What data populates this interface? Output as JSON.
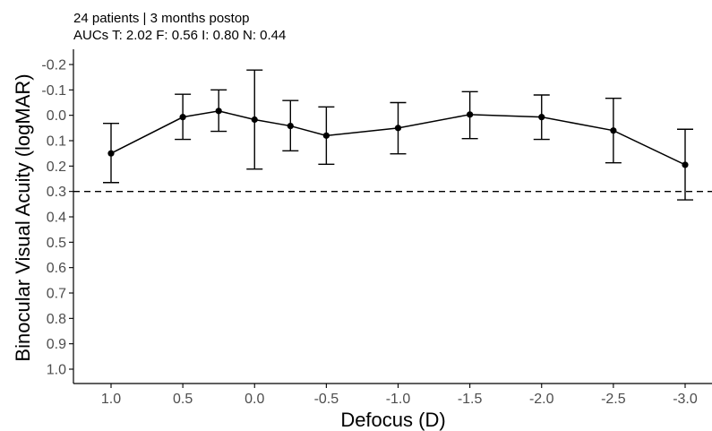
{
  "chart_data": {
    "type": "line",
    "title": "",
    "subtitle_lines": [
      "24 patients | 3 months postop",
      "AUCs T: 2.02 F: 0.56 I: 0.80 N: 0.44"
    ],
    "xlabel": "Defocus (D)",
    "ylabel": "Binocular Visual Acuity (logMAR)",
    "x_ticks": [
      1.0,
      0.5,
      0.0,
      -0.5,
      -1.0,
      -1.5,
      -2.0,
      -2.5,
      -3.0
    ],
    "x_tick_labels": [
      "1.0",
      "0.5",
      "0.0",
      "-0.5",
      "-1.0",
      "-1.5",
      "-2.0",
      "-2.5",
      "-3.0"
    ],
    "y_ticks": [
      -0.2,
      -0.1,
      0.0,
      0.1,
      0.2,
      0.3,
      0.4,
      0.5,
      0.6,
      0.7,
      0.8,
      0.9,
      1.0
    ],
    "y_tick_labels": [
      "-0.2",
      "-0.1",
      "0.0",
      "0.1",
      "0.2",
      "0.3",
      "0.4",
      "0.5",
      "0.6",
      "0.7",
      "0.8",
      "0.9",
      "1.0"
    ],
    "xlim": [
      1.25,
      -3.25
    ],
    "ylim_reversed": [
      -0.25,
      1.05
    ],
    "reference_line": {
      "y": 0.3,
      "style": "dashed"
    },
    "grid": false,
    "series": [
      {
        "x": [
          1.0,
          0.5,
          0.25,
          0.0,
          -0.25,
          -0.5,
          -1.0,
          -1.5,
          -2.0,
          -2.5,
          -3.0
        ],
        "y": [
          0.15,
          0.007,
          -0.017,
          0.017,
          0.042,
          0.08,
          0.05,
          -0.003,
          0.007,
          0.06,
          0.195
        ],
        "err_lower": [
          0.265,
          0.095,
          0.063,
          0.212,
          0.14,
          0.193,
          0.152,
          0.092,
          0.095,
          0.187,
          0.333
        ],
        "err_upper": [
          0.032,
          -0.083,
          -0.1,
          -0.178,
          -0.058,
          -0.033,
          -0.05,
          -0.093,
          -0.08,
          -0.067,
          0.055
        ]
      }
    ],
    "colors": {
      "line": "#000000",
      "reference": "#000000",
      "axis": "#000000",
      "tick_text": "#4d4d4d"
    }
  }
}
